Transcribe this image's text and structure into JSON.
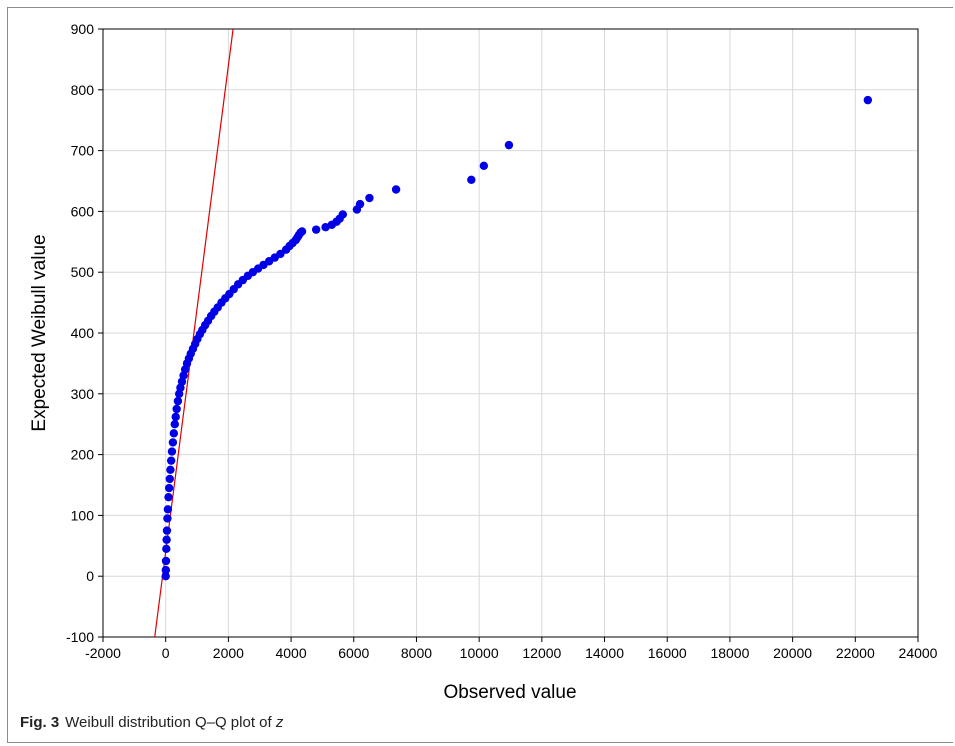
{
  "caption": {
    "label": "Fig. 3",
    "text": "Weibull distribution Q–Q plot of",
    "variable": "z"
  },
  "colors": {
    "points": "#0000e6",
    "reference_line": "#e00000",
    "grid": "#d9d9d9",
    "axis": "#000000"
  },
  "chart_data": {
    "type": "scatter",
    "title": "",
    "xlabel": "Observed value",
    "ylabel": "Expected Weibull value",
    "xlim": [
      -2000,
      24000
    ],
    "ylim": [
      -100,
      900
    ],
    "xticks": [
      -2000,
      0,
      2000,
      4000,
      6000,
      8000,
      10000,
      12000,
      14000,
      16000,
      18000,
      20000,
      22000,
      24000
    ],
    "yticks": [
      -100,
      0,
      100,
      200,
      300,
      400,
      500,
      600,
      700,
      800,
      900
    ],
    "grid": true,
    "reference_line": {
      "points": [
        [
          -350,
          -100
        ],
        [
          2150,
          900
        ]
      ]
    },
    "series": [
      {
        "x": [
          0,
          5,
          10,
          20,
          30,
          40,
          55,
          70,
          90,
          110,
          130,
          150,
          175,
          200,
          230,
          260,
          290,
          320,
          350,
          390,
          430,
          470,
          520,
          570,
          620,
          680,
          740,
          800,
          870,
          940,
          1010,
          1090,
          1170,
          1260,
          1350,
          1450,
          1550,
          1660,
          1780,
          1900,
          2030,
          2170,
          2310,
          2460,
          2620,
          2780,
          2950,
          3120,
          3300,
          3480,
          3660,
          3840,
          3950,
          4050,
          4150,
          4200,
          4250,
          4300,
          4350,
          4800,
          5100,
          5300,
          5450,
          5550,
          5650,
          6100,
          6200,
          6500,
          7350,
          9750,
          10150,
          10950,
          22400
        ],
        "y": [
          0,
          10,
          25,
          45,
          60,
          75,
          95,
          110,
          130,
          145,
          160,
          175,
          190,
          205,
          220,
          235,
          250,
          262,
          275,
          288,
          300,
          310,
          320,
          330,
          340,
          350,
          358,
          366,
          374,
          382,
          390,
          398,
          405,
          413,
          420,
          428,
          435,
          442,
          450,
          457,
          464,
          472,
          480,
          487,
          494,
          500,
          506,
          512,
          518,
          524,
          530,
          537,
          543,
          548,
          553,
          557,
          561,
          565,
          567,
          570,
          574,
          578,
          583,
          588,
          595,
          603,
          612,
          622,
          636,
          652,
          675,
          709,
          783
        ]
      }
    ]
  }
}
